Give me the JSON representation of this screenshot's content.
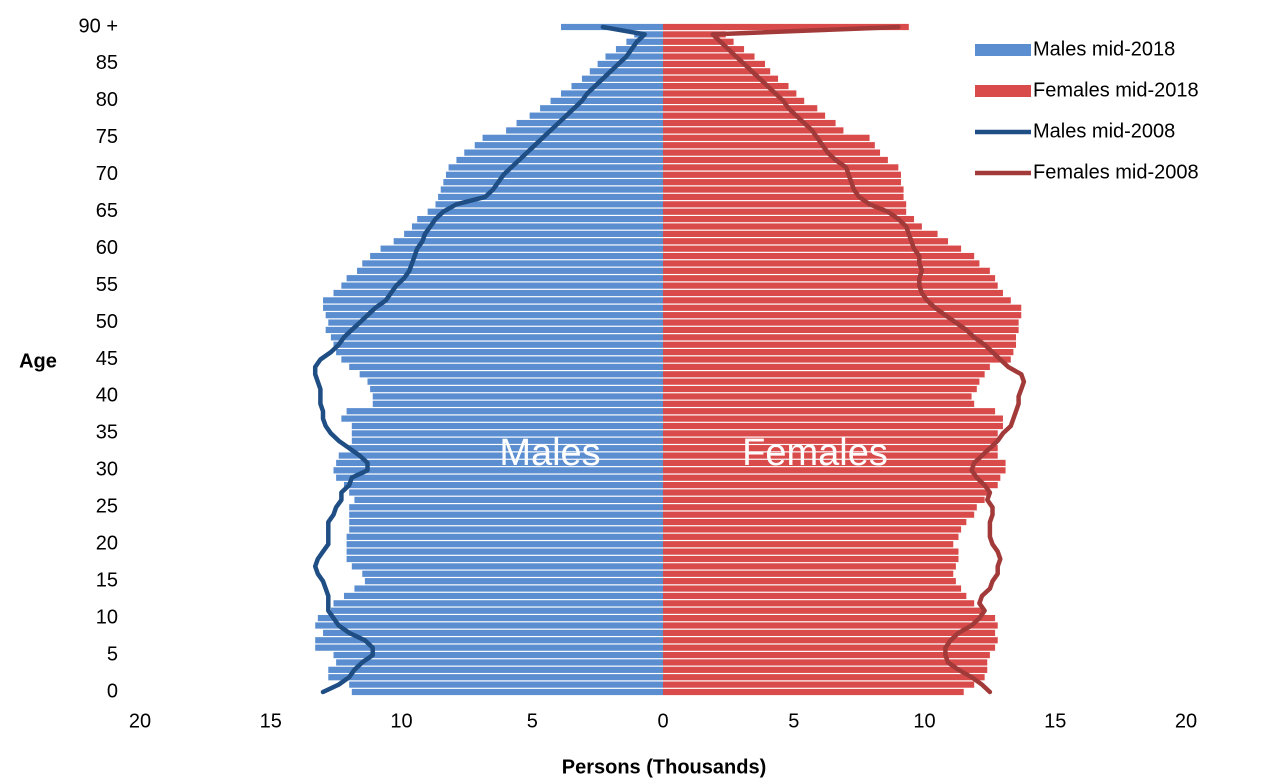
{
  "chart_data": {
    "type": "pyramid",
    "xlabel": "Persons (Thousands)",
    "ylabel": "Age",
    "annotations": [
      {
        "text": "Males",
        "side": "left"
      },
      {
        "text": "Females",
        "side": "right"
      }
    ],
    "y": [
      0,
      1,
      2,
      3,
      4,
      5,
      6,
      7,
      8,
      9,
      10,
      11,
      12,
      13,
      14,
      15,
      16,
      17,
      18,
      19,
      20,
      21,
      22,
      23,
      24,
      25,
      26,
      27,
      28,
      29,
      30,
      31,
      32,
      33,
      34,
      35,
      36,
      37,
      38,
      39,
      40,
      41,
      42,
      43,
      44,
      45,
      46,
      47,
      48,
      49,
      50,
      51,
      52,
      53,
      54,
      55,
      56,
      57,
      58,
      59,
      60,
      61,
      62,
      63,
      64,
      65,
      66,
      67,
      68,
      69,
      70,
      71,
      72,
      73,
      74,
      75,
      76,
      77,
      78,
      79,
      80,
      81,
      82,
      83,
      84,
      85,
      86,
      87,
      88,
      89,
      90
    ],
    "xlim": [
      -20,
      20
    ],
    "xticks": [
      {
        "value": -20,
        "label": "20"
      },
      {
        "value": -15,
        "label": "15"
      },
      {
        "value": -10,
        "label": "10"
      },
      {
        "value": -5,
        "label": "5"
      },
      0,
      5,
      10,
      15,
      20
    ],
    "ylim": [
      0,
      90
    ],
    "yticks": [
      0,
      5,
      10,
      15,
      20,
      25,
      30,
      35,
      40,
      45,
      50,
      55,
      60,
      65,
      70,
      75,
      80,
      85,
      {
        "value": 90,
        "label": "90 +"
      }
    ],
    "legend": "top-right",
    "series": [
      {
        "name": "Males mid-2018",
        "kind": "bar",
        "side": "left",
        "color": "#5b8ed0",
        "values": [
          11.9,
          12.0,
          12.8,
          12.8,
          12.5,
          12.6,
          13.3,
          13.3,
          13.0,
          13.3,
          13.2,
          12.7,
          12.6,
          12.2,
          11.8,
          11.4,
          11.5,
          11.9,
          12.1,
          12.1,
          12.1,
          12.1,
          12.0,
          12.0,
          12.0,
          12.0,
          11.8,
          12.0,
          12.2,
          12.5,
          12.6,
          12.5,
          12.4,
          12.0,
          11.9,
          11.9,
          11.9,
          12.3,
          12.1,
          11.1,
          11.1,
          11.2,
          11.3,
          11.6,
          12.0,
          12.3,
          12.5,
          12.6,
          12.7,
          12.9,
          12.8,
          12.9,
          13.0,
          13.0,
          12.6,
          12.3,
          12.1,
          11.7,
          11.5,
          11.2,
          10.8,
          10.3,
          9.9,
          9.6,
          9.4,
          9.0,
          8.7,
          8.6,
          8.5,
          8.4,
          8.3,
          8.2,
          7.9,
          7.6,
          7.2,
          6.9,
          6.0,
          5.6,
          5.1,
          4.7,
          4.3,
          3.9,
          3.5,
          3.1,
          2.8,
          2.5,
          2.2,
          1.8,
          1.4,
          1.1,
          3.9
        ]
      },
      {
        "name": "Females mid-2018",
        "kind": "bar",
        "side": "right",
        "color": "#d94a4a",
        "values": [
          11.5,
          11.9,
          12.3,
          12.4,
          12.4,
          12.5,
          12.7,
          12.8,
          12.7,
          12.8,
          12.7,
          12.2,
          11.9,
          11.6,
          11.4,
          11.2,
          11.1,
          11.2,
          11.3,
          11.3,
          11.1,
          11.3,
          11.4,
          11.6,
          11.9,
          12.0,
          12.3,
          12.5,
          12.8,
          12.9,
          13.1,
          13.1,
          12.8,
          12.8,
          12.8,
          12.8,
          13.0,
          13.0,
          12.7,
          11.9,
          11.8,
          12.0,
          12.1,
          12.3,
          12.5,
          13.3,
          13.4,
          13.5,
          13.5,
          13.6,
          13.6,
          13.7,
          13.7,
          13.3,
          13.0,
          12.8,
          12.7,
          12.5,
          12.1,
          11.9,
          11.4,
          10.9,
          10.5,
          9.9,
          9.6,
          9.3,
          9.3,
          9.2,
          9.2,
          9.1,
          9.1,
          9.0,
          8.6,
          8.3,
          8.1,
          7.9,
          6.9,
          6.6,
          6.2,
          5.9,
          5.4,
          5.1,
          4.8,
          4.4,
          4.1,
          3.9,
          3.5,
          3.1,
          2.7,
          2.4,
          9.4
        ]
      },
      {
        "name": "Males mid-2008",
        "kind": "line",
        "side": "left",
        "color": "#1f4e85",
        "values": [
          13.0,
          12.4,
          12.0,
          11.8,
          11.5,
          11.1,
          11.1,
          11.4,
          12.0,
          12.4,
          12.6,
          12.8,
          12.8,
          12.8,
          12.9,
          13.0,
          13.2,
          13.3,
          13.2,
          13.0,
          12.8,
          12.8,
          12.8,
          12.8,
          12.6,
          12.5,
          12.3,
          12.3,
          12.0,
          11.9,
          11.3,
          11.3,
          11.6,
          12.0,
          12.4,
          12.7,
          12.9,
          13.0,
          13.0,
          13.1,
          13.1,
          13.1,
          13.2,
          13.3,
          13.3,
          13.1,
          12.7,
          12.4,
          12.2,
          11.9,
          11.6,
          11.3,
          11.0,
          10.6,
          10.4,
          10.2,
          9.9,
          9.7,
          9.6,
          9.5,
          9.4,
          9.2,
          9.1,
          8.9,
          8.7,
          8.4,
          7.9,
          6.8,
          6.5,
          6.3,
          6.1,
          5.8,
          5.5,
          5.2,
          4.9,
          4.6,
          4.3,
          4.0,
          3.7,
          3.4,
          3.1,
          2.9,
          2.6,
          2.3,
          2.0,
          1.7,
          1.4,
          1.2,
          1.0,
          0.7,
          2.3
        ]
      },
      {
        "name": "Females mid-2008",
        "kind": "line",
        "side": "right",
        "color": "#a33a3a",
        "values": [
          12.5,
          12.2,
          11.8,
          11.3,
          10.9,
          10.8,
          10.8,
          11.0,
          11.3,
          11.8,
          12.1,
          12.3,
          12.1,
          12.2,
          12.5,
          12.6,
          12.8,
          12.8,
          12.9,
          12.8,
          12.6,
          12.5,
          12.5,
          12.5,
          12.6,
          12.6,
          12.4,
          12.5,
          12.3,
          12.0,
          11.8,
          11.9,
          12.2,
          12.5,
          12.8,
          13.0,
          13.3,
          13.4,
          13.5,
          13.6,
          13.6,
          13.7,
          13.8,
          13.7,
          13.2,
          12.9,
          12.6,
          12.3,
          11.9,
          11.6,
          11.2,
          10.8,
          10.4,
          10.1,
          9.9,
          9.8,
          9.8,
          9.9,
          9.8,
          9.8,
          9.6,
          9.5,
          9.4,
          9.3,
          9.0,
          8.6,
          7.9,
          7.5,
          7.3,
          7.2,
          7.1,
          7.0,
          6.6,
          6.3,
          6.1,
          5.9,
          5.7,
          5.4,
          5.1,
          4.8,
          4.6,
          4.3,
          4.0,
          3.7,
          3.4,
          3.1,
          2.8,
          2.5,
          2.2,
          1.9,
          9.0
        ]
      }
    ]
  }
}
